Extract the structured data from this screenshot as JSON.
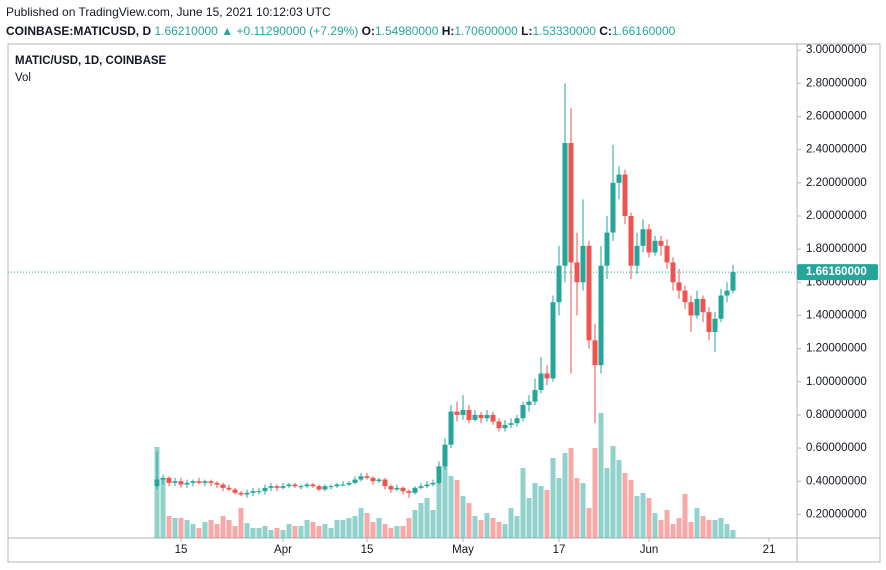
{
  "header": {
    "published": "Published on TradingView.com, June 15, 2021 10:12:03 UTC",
    "symbol": "COINBASE:MATICUSD, D",
    "price": "1.66210000",
    "arrow": "▲",
    "change": "+0.11290000 (+7.29%)",
    "o_label": "O:",
    "o": "1.54980000",
    "h_label": "H:",
    "h": "1.70600000",
    "l_label": "L:",
    "l": "1.53330000",
    "c_label": "C:",
    "c": "1.66160000"
  },
  "chart_data": {
    "type": "candlestick",
    "legend": "MATIC/USD, 1D, COINBASE",
    "volume_label": "Vol",
    "up_color": "#26a69a",
    "down_color": "#ef5350",
    "categories": [
      "2021-03-11",
      "2021-03-12",
      "2021-03-13",
      "2021-03-14",
      "2021-03-15",
      "2021-03-16",
      "2021-03-17",
      "2021-03-18",
      "2021-03-19",
      "2021-03-20",
      "2021-03-21",
      "2021-03-22",
      "2021-03-23",
      "2021-03-24",
      "2021-03-25",
      "2021-03-26",
      "2021-03-27",
      "2021-03-28",
      "2021-03-29",
      "2021-03-30",
      "2021-03-31",
      "2021-04-01",
      "2021-04-02",
      "2021-04-03",
      "2021-04-04",
      "2021-04-05",
      "2021-04-06",
      "2021-04-07",
      "2021-04-08",
      "2021-04-09",
      "2021-04-10",
      "2021-04-11",
      "2021-04-12",
      "2021-04-13",
      "2021-04-14",
      "2021-04-15",
      "2021-04-16",
      "2021-04-17",
      "2021-04-18",
      "2021-04-19",
      "2021-04-20",
      "2021-04-21",
      "2021-04-22",
      "2021-04-23",
      "2021-04-24",
      "2021-04-25",
      "2021-04-26",
      "2021-04-27",
      "2021-04-28",
      "2021-04-29",
      "2021-04-30",
      "2021-05-01",
      "2021-05-02",
      "2021-05-03",
      "2021-05-04",
      "2021-05-05",
      "2021-05-06",
      "2021-05-07",
      "2021-05-08",
      "2021-05-09",
      "2021-05-10",
      "2021-05-11",
      "2021-05-12",
      "2021-05-13",
      "2021-05-14",
      "2021-05-15",
      "2021-05-16",
      "2021-05-17",
      "2021-05-18",
      "2021-05-19",
      "2021-05-20",
      "2021-05-21",
      "2021-05-22",
      "2021-05-23",
      "2021-05-24",
      "2021-05-25",
      "2021-05-26",
      "2021-05-27",
      "2021-05-28",
      "2021-05-29",
      "2021-05-30",
      "2021-05-31",
      "2021-06-01",
      "2021-06-02",
      "2021-06-03",
      "2021-06-04",
      "2021-06-05",
      "2021-06-06",
      "2021-06-07",
      "2021-06-08",
      "2021-06-09",
      "2021-06-10",
      "2021-06-11",
      "2021-06-12",
      "2021-06-13",
      "2021-06-14",
      "2021-06-15"
    ],
    "open": [
      0.37,
      0.41,
      0.42,
      0.39,
      0.4,
      0.38,
      0.39,
      0.4,
      0.39,
      0.4,
      0.39,
      0.38,
      0.36,
      0.35,
      0.33,
      0.32,
      0.33,
      0.34,
      0.34,
      0.36,
      0.37,
      0.36,
      0.37,
      0.38,
      0.37,
      0.37,
      0.38,
      0.37,
      0.35,
      0.37,
      0.37,
      0.38,
      0.38,
      0.39,
      0.41,
      0.43,
      0.42,
      0.4,
      0.41,
      0.37,
      0.35,
      0.36,
      0.34,
      0.33,
      0.36,
      0.37,
      0.38,
      0.39,
      0.49,
      0.62,
      0.82,
      0.8,
      0.83,
      0.77,
      0.8,
      0.78,
      0.8,
      0.76,
      0.72,
      0.74,
      0.75,
      0.78,
      0.86,
      0.88,
      0.95,
      1.05,
      1.02,
      1.48,
      1.7,
      2.44,
      1.72,
      1.6,
      1.82,
      1.25,
      1.1,
      1.7,
      1.9,
      2.2,
      2.25,
      2.0,
      1.7,
      1.82,
      1.92,
      1.78,
      1.85,
      1.82,
      1.72,
      1.6,
      1.55,
      1.48,
      1.4,
      1.5,
      1.42,
      1.3,
      1.38,
      1.52,
      1.5498
    ],
    "high": [
      0.58,
      0.44,
      0.43,
      0.42,
      0.42,
      0.41,
      0.41,
      0.42,
      0.41,
      0.41,
      0.4,
      0.39,
      0.38,
      0.36,
      0.34,
      0.35,
      0.36,
      0.36,
      0.38,
      0.39,
      0.38,
      0.39,
      0.39,
      0.39,
      0.38,
      0.39,
      0.39,
      0.38,
      0.38,
      0.38,
      0.39,
      0.4,
      0.4,
      0.43,
      0.45,
      0.45,
      0.43,
      0.42,
      0.42,
      0.38,
      0.38,
      0.37,
      0.35,
      0.37,
      0.39,
      0.4,
      0.41,
      0.52,
      0.66,
      0.86,
      0.88,
      0.92,
      0.86,
      0.83,
      0.82,
      0.83,
      0.82,
      0.78,
      0.77,
      0.78,
      0.8,
      0.88,
      0.92,
      1.02,
      1.15,
      1.1,
      1.52,
      1.82,
      2.8,
      2.65,
      1.9,
      2.1,
      1.85,
      1.35,
      1.82,
      2.0,
      2.43,
      2.3,
      2.28,
      2.02,
      1.9,
      1.98,
      1.95,
      1.88,
      1.88,
      1.86,
      1.75,
      1.68,
      1.58,
      1.52,
      1.55,
      1.52,
      1.45,
      1.42,
      1.56,
      1.6,
      1.706
    ],
    "low": [
      0.35,
      0.38,
      0.37,
      0.37,
      0.36,
      0.36,
      0.37,
      0.38,
      0.37,
      0.37,
      0.36,
      0.34,
      0.34,
      0.32,
      0.31,
      0.3,
      0.31,
      0.32,
      0.32,
      0.34,
      0.34,
      0.35,
      0.36,
      0.36,
      0.35,
      0.36,
      0.36,
      0.34,
      0.34,
      0.35,
      0.36,
      0.37,
      0.37,
      0.38,
      0.4,
      0.41,
      0.38,
      0.39,
      0.35,
      0.33,
      0.34,
      0.32,
      0.3,
      0.32,
      0.35,
      0.36,
      0.37,
      0.38,
      0.47,
      0.6,
      0.76,
      0.77,
      0.75,
      0.76,
      0.75,
      0.76,
      0.74,
      0.7,
      0.7,
      0.72,
      0.73,
      0.76,
      0.82,
      0.86,
      0.93,
      0.98,
      1.0,
      1.4,
      1.6,
      1.05,
      1.4,
      1.55,
      1.2,
      0.75,
      1.05,
      1.62,
      1.85,
      2.1,
      1.95,
      1.62,
      1.65,
      1.78,
      1.75,
      1.76,
      1.76,
      1.68,
      1.55,
      1.5,
      1.44,
      1.3,
      1.38,
      1.36,
      1.25,
      1.18,
      1.36,
      1.48,
      1.5333
    ],
    "close": [
      0.41,
      0.42,
      0.39,
      0.4,
      0.38,
      0.39,
      0.4,
      0.39,
      0.4,
      0.39,
      0.38,
      0.36,
      0.35,
      0.33,
      0.32,
      0.33,
      0.34,
      0.34,
      0.36,
      0.37,
      0.36,
      0.37,
      0.38,
      0.37,
      0.37,
      0.38,
      0.37,
      0.35,
      0.37,
      0.37,
      0.38,
      0.38,
      0.39,
      0.41,
      0.43,
      0.42,
      0.4,
      0.41,
      0.37,
      0.35,
      0.36,
      0.34,
      0.33,
      0.36,
      0.37,
      0.38,
      0.39,
      0.49,
      0.62,
      0.82,
      0.8,
      0.83,
      0.77,
      0.8,
      0.78,
      0.8,
      0.76,
      0.72,
      0.74,
      0.75,
      0.78,
      0.86,
      0.88,
      0.95,
      1.05,
      1.02,
      1.48,
      1.7,
      2.44,
      1.72,
      1.6,
      1.82,
      1.25,
      1.1,
      1.7,
      1.9,
      2.2,
      2.25,
      2.0,
      1.7,
      1.82,
      1.92,
      1.78,
      1.85,
      1.82,
      1.72,
      1.6,
      1.55,
      1.48,
      1.4,
      1.5,
      1.42,
      1.3,
      1.38,
      1.52,
      1.55,
      1.6616
    ],
    "volume": [
      91,
      60,
      22,
      20,
      20,
      18,
      14,
      10,
      16,
      18,
      14,
      22,
      18,
      12,
      30,
      15,
      10,
      10,
      12,
      8,
      10,
      8,
      14,
      12,
      12,
      18,
      16,
      12,
      14,
      10,
      18,
      18,
      20,
      22,
      30,
      25,
      16,
      20,
      14,
      10,
      12,
      12,
      20,
      28,
      35,
      40,
      28,
      70,
      90,
      62,
      58,
      42,
      35,
      22,
      18,
      25,
      20,
      16,
      14,
      30,
      22,
      70,
      40,
      55,
      52,
      48,
      80,
      60,
      85,
      90,
      60,
      55,
      30,
      90,
      125,
      70,
      92,
      78,
      65,
      58,
      42,
      45,
      40,
      25,
      18,
      28,
      14,
      20,
      44,
      16,
      30,
      22,
      18,
      18,
      20,
      14,
      8
    ],
    "last_price": {
      "value": 1.6616,
      "label": "1.66160000"
    },
    "ylim": [
      0.0575,
      3.0375
    ],
    "yticks": [
      {
        "value": 0.2,
        "label": "0.20000000"
      },
      {
        "value": 0.4,
        "label": "0.40000000"
      },
      {
        "value": 0.6,
        "label": "0.60000000"
      },
      {
        "value": 0.8,
        "label": "0.80000000"
      },
      {
        "value": 1.0,
        "label": "1.00000000"
      },
      {
        "value": 1.2,
        "label": "1.20000000"
      },
      {
        "value": 1.4,
        "label": "1.40000000"
      },
      {
        "value": 1.6,
        "label": "1.60000000"
      },
      {
        "value": 1.8,
        "label": "1.80000000"
      },
      {
        "value": 2.0,
        "label": "2.00000000"
      },
      {
        "value": 2.2,
        "label": "2.20000000"
      },
      {
        "value": 2.4,
        "label": "2.40000000"
      },
      {
        "value": 2.6,
        "label": "2.60000000"
      },
      {
        "value": 2.8,
        "label": "2.80000000"
      },
      {
        "value": 3.0,
        "label": "3.00000000"
      }
    ],
    "xticks": [
      {
        "value": "2021-03-15",
        "label": "15"
      },
      {
        "value": "2021-04-01",
        "label": "Apr"
      },
      {
        "value": "2021-04-15",
        "label": "15"
      },
      {
        "value": "2021-05-01",
        "label": "May"
      },
      {
        "value": "2021-05-17",
        "label": "17"
      },
      {
        "value": "2021-06-01",
        "label": "Jun"
      },
      {
        "value": "2021-06-21",
        "label": "21"
      }
    ]
  }
}
